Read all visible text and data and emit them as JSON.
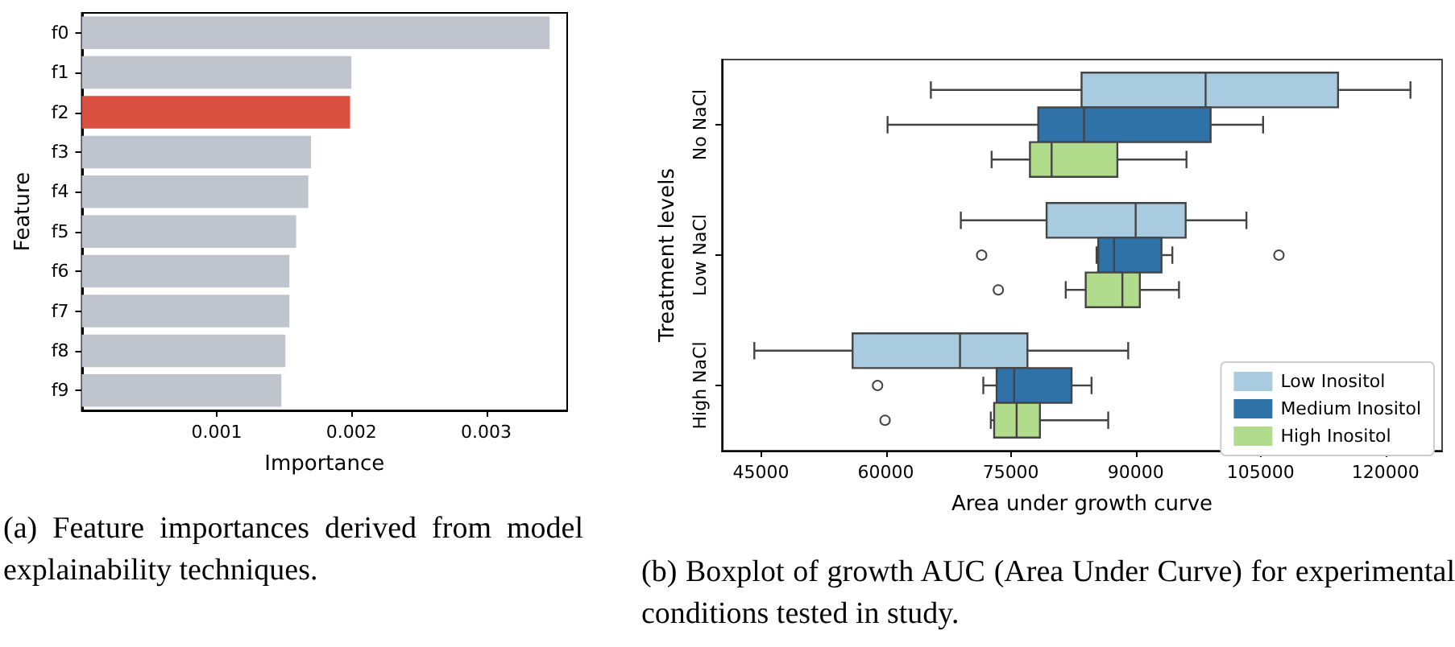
{
  "chart_data": [
    {
      "type": "bar",
      "orientation": "horizontal",
      "categories": [
        "f0",
        "f1",
        "f2",
        "f3",
        "f4",
        "f5",
        "f6",
        "f7",
        "f8",
        "f9"
      ],
      "values": [
        0.00347,
        0.002,
        0.00199,
        0.0017,
        0.00168,
        0.00159,
        0.00154,
        0.00154,
        0.00151,
        0.00148
      ],
      "colors": [
        "#c0c4cc",
        "#c0c4cc",
        "#d95040",
        "#c0c4cc",
        "#c0c4cc",
        "#c0c4cc",
        "#c0c4cc",
        "#c0c4cc",
        "#c0c4cc",
        "#c0c4cc"
      ],
      "xlim": [
        0,
        0.0036
      ],
      "xticks": [
        0.001,
        0.002,
        0.003
      ],
      "xlabel": "Importance",
      "ylabel": "Feature",
      "annotations": [
        "(a) Feature importances derived from model explainability techniques."
      ]
    },
    {
      "type": "box",
      "orientation": "horizontal",
      "categories": [
        "No NaCl",
        "Low NaCl",
        "High NaCl"
      ],
      "series": [
        {
          "name": "Low Inositol",
          "color": "#a9cbe0",
          "boxes": [
            {
              "low": 65400,
              "q1": 83500,
              "median": 98400,
              "q3": 114300,
              "high": 123000
            },
            {
              "low": 69000,
              "q1": 79300,
              "median": 90000,
              "q3": 96000,
              "high": 103300
            },
            {
              "low": 44200,
              "q1": 56000,
              "median": 68900,
              "q3": 77000,
              "high": 89100
            }
          ]
        },
        {
          "name": "Medium Inositol",
          "color": "#2e72a8",
          "boxes": [
            {
              "low": 60200,
              "q1": 78300,
              "median": 83800,
              "q3": 99000,
              "high": 105300
            },
            {
              "low": 85300,
              "q1": 85500,
              "median": 87400,
              "q3": 93100,
              "high": 94400,
              "outliers": [
                71500,
                107200
              ]
            },
            {
              "low": 71700,
              "q1": 73300,
              "median": 75400,
              "q3": 82300,
              "high": 84700,
              "outliers": [
                59000
              ]
            }
          ]
        },
        {
          "name": "High Inositol",
          "color": "#b0dc8c",
          "boxes": [
            {
              "low": 72700,
              "q1": 77300,
              "median": 79900,
              "q3": 87800,
              "high": 96100
            },
            {
              "low": 81600,
              "q1": 84000,
              "median": 88400,
              "q3": 90500,
              "high": 95200,
              "outliers": [
                73500
              ]
            },
            {
              "low": 72600,
              "q1": 73000,
              "median": 75700,
              "q3": 78500,
              "high": 86700,
              "outliers": [
                59900
              ]
            }
          ]
        }
      ],
      "xlim": [
        40300,
        126800
      ],
      "xticks": [
        45000,
        60000,
        75000,
        90000,
        105000,
        120000
      ],
      "xlabel": "Area under growth curve",
      "ylabel": "Treatment levels",
      "legend": "bottom right",
      "annotations": [
        "(b) Boxplot of growth AUC (Area Under Curve) for experimental conditions tested in study."
      ]
    }
  ]
}
